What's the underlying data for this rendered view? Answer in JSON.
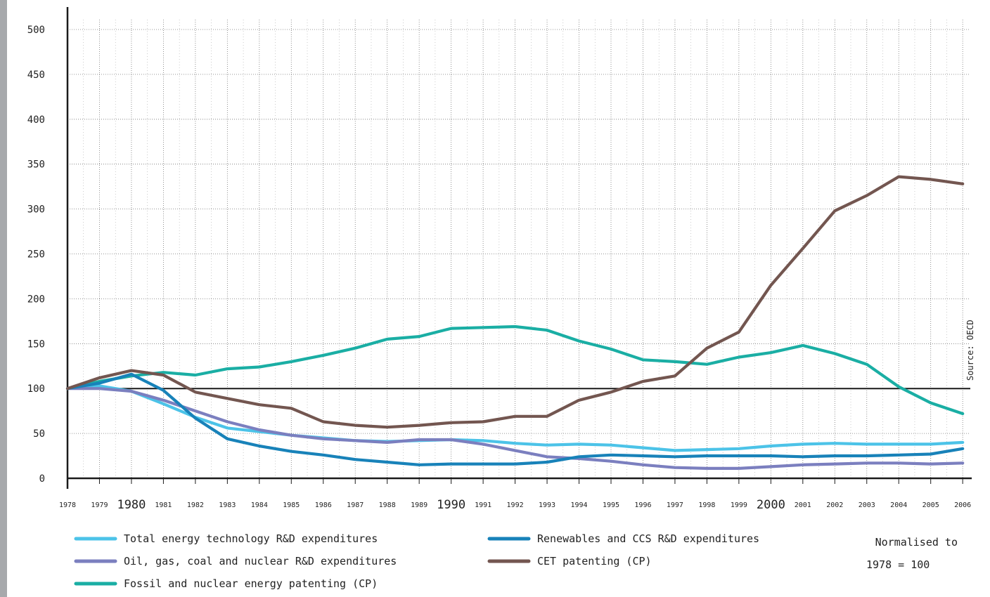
{
  "chart_data": {
    "type": "line",
    "x": [
      1978,
      1979,
      1980,
      1981,
      1982,
      1983,
      1984,
      1985,
      1986,
      1987,
      1988,
      1989,
      1990,
      1991,
      1992,
      1993,
      1994,
      1995,
      1996,
      1997,
      1998,
      1999,
      2000,
      2001,
      2002,
      2003,
      2004,
      2005,
      2006
    ],
    "x_tick_labels": [
      "1978",
      "1979",
      "1980",
      "1981",
      "1982",
      "1983",
      "1984",
      "1985",
      "1986",
      "1987",
      "1988",
      "1989",
      "1990",
      "1991",
      "1992",
      "1993",
      "1994",
      "1995",
      "1996",
      "1997",
      "1998",
      "1999",
      "2000",
      "2001",
      "2002",
      "2003",
      "2004",
      "2005",
      "2006"
    ],
    "y_tick_labels": [
      "0",
      "50",
      "100",
      "150",
      "200",
      "250",
      "300",
      "350",
      "400",
      "450",
      "500"
    ],
    "ylim": [
      0,
      500
    ],
    "reference_line": 100,
    "grid": true,
    "source": "Source: OECD",
    "note_line1": "Normalised to",
    "note_line2": "1978 = 100",
    "series": [
      {
        "name": "Total energy technology R&D expenditures",
        "color": "#4cc3e8",
        "values": [
          100,
          103,
          97,
          83,
          68,
          56,
          52,
          48,
          45,
          42,
          41,
          42,
          43,
          42,
          39,
          37,
          38,
          37,
          34,
          31,
          32,
          33,
          36,
          38,
          39,
          38,
          38,
          38,
          40
        ]
      },
      {
        "name": "Oil, gas, coal and nuclear R&D expenditures",
        "color": "#7b7fbf",
        "values": [
          100,
          100,
          97,
          87,
          75,
          63,
          54,
          48,
          44,
          42,
          40,
          43,
          43,
          38,
          31,
          24,
          22,
          19,
          15,
          12,
          11,
          11,
          13,
          15,
          16,
          17,
          17,
          16,
          17
        ]
      },
      {
        "name": "Fossil and nuclear energy patenting (CP)",
        "color": "#1aaea4",
        "values": [
          100,
          108,
          114,
          118,
          115,
          122,
          124,
          130,
          137,
          145,
          155,
          158,
          167,
          168,
          169,
          165,
          153,
          144,
          132,
          130,
          127,
          135,
          140,
          148,
          139,
          127,
          102,
          84,
          72
        ]
      },
      {
        "name": "Renewables and CCS R&D expenditures",
        "color": "#1882b9",
        "values": [
          100,
          106,
          116,
          98,
          67,
          44,
          36,
          30,
          26,
          21,
          18,
          15,
          16,
          16,
          16,
          18,
          24,
          26,
          25,
          24,
          25,
          25,
          25,
          24,
          25,
          25,
          26,
          27,
          33
        ]
      },
      {
        "name": "CET patenting (CP)",
        "color": "#735650",
        "values": [
          100,
          112,
          120,
          115,
          96,
          89,
          82,
          78,
          63,
          59,
          57,
          59,
          62,
          63,
          69,
          69,
          87,
          96,
          108,
          114,
          145,
          163,
          215,
          256,
          298,
          315,
          336,
          333,
          328
        ]
      }
    ]
  }
}
